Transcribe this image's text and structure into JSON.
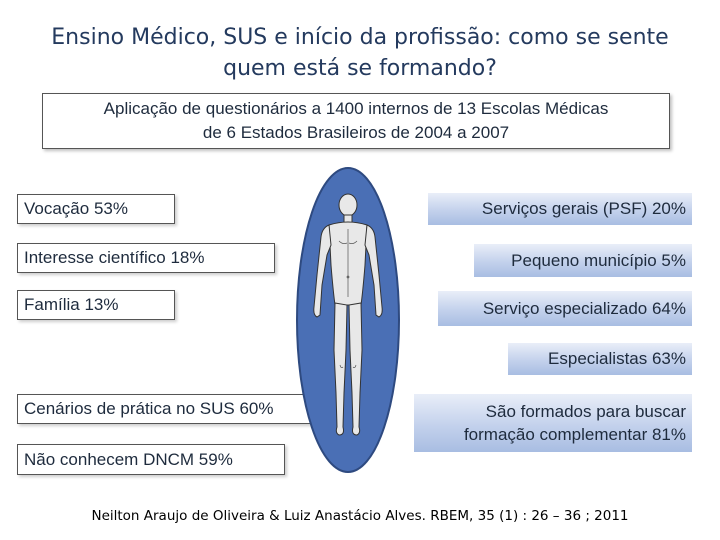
{
  "title": {
    "line1": "Ensino Médico, SUS e início da profissão: como se sente",
    "line2": "quem está se formando?"
  },
  "study_box": {
    "line1": "Aplicação de questionários a 1400 internos de 13 Escolas Médicas",
    "line2": "de 6 Estados Brasileiros de 2004 a 2007"
  },
  "left_items": [
    "Vocação 53%",
    "Interesse científico 18%",
    "Família 13%",
    "Cenários de prática no SUS 60%",
    "Não conhecem DNCM 59%"
  ],
  "right_items": [
    "Serviços gerais (PSF)  20%",
    "Pequeno município 5%",
    "Serviço especializado 64%",
    "Especialistas 63%"
  ],
  "right_multiline": {
    "line1": "São formados para buscar",
    "line2": "formação  complementar 81%"
  },
  "citation": "Neilton Araujo de Oliveira & Luiz Anastácio Alves. RBEM, 35 (1) : 26 – 36 ; 2011",
  "colors": {
    "title": "#243a5e",
    "oval_fill": "#4a6fb5",
    "oval_stroke": "#2e4a80",
    "body_figure": "#e8e8e8",
    "gradient_box": "#b4c6e7"
  },
  "icons": {
    "figure": "human-body-figure"
  }
}
